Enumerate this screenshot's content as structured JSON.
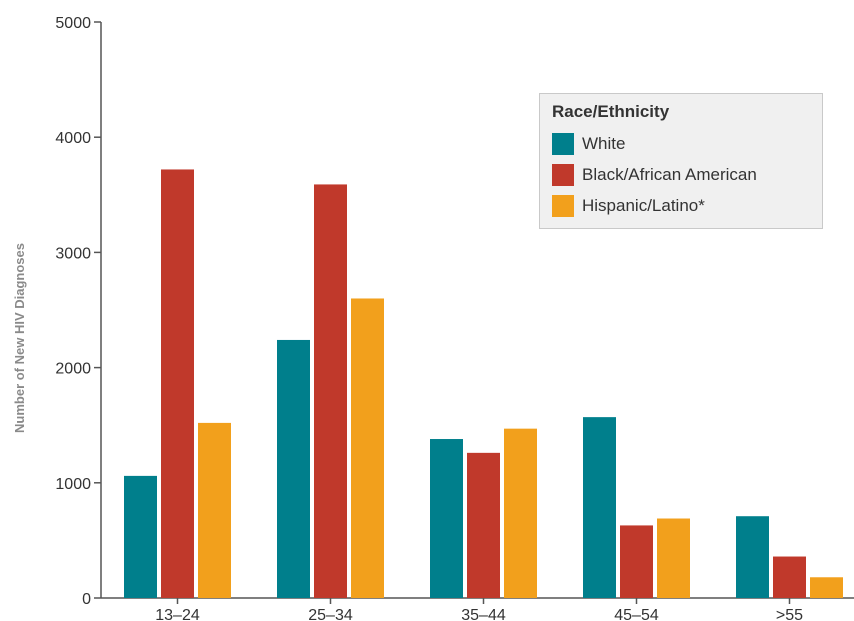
{
  "chart_data": {
    "type": "bar",
    "categories": [
      "13–24",
      "25–34",
      "35–44",
      "45–54",
      ">55"
    ],
    "series": [
      {
        "name": "White",
        "color": "#007f8c",
        "values": [
          1060,
          2240,
          1380,
          1570,
          710
        ]
      },
      {
        "name": "Black/African American",
        "color": "#c0392b",
        "values": [
          3720,
          3590,
          1260,
          630,
          360
        ]
      },
      {
        "name": "Hispanic/Latino*",
        "color": "#f2a01c",
        "values": [
          1520,
          2600,
          1470,
          690,
          180
        ]
      }
    ],
    "ylabel": "Number of New HIV Diagnoses",
    "ylim": [
      0,
      5000
    ],
    "yticks": [
      "0",
      "1000",
      "2000",
      "3000",
      "4000",
      "5000"
    ],
    "legend": {
      "title": "Race/Ethnicity",
      "position": "top-right"
    },
    "grid": false
  }
}
